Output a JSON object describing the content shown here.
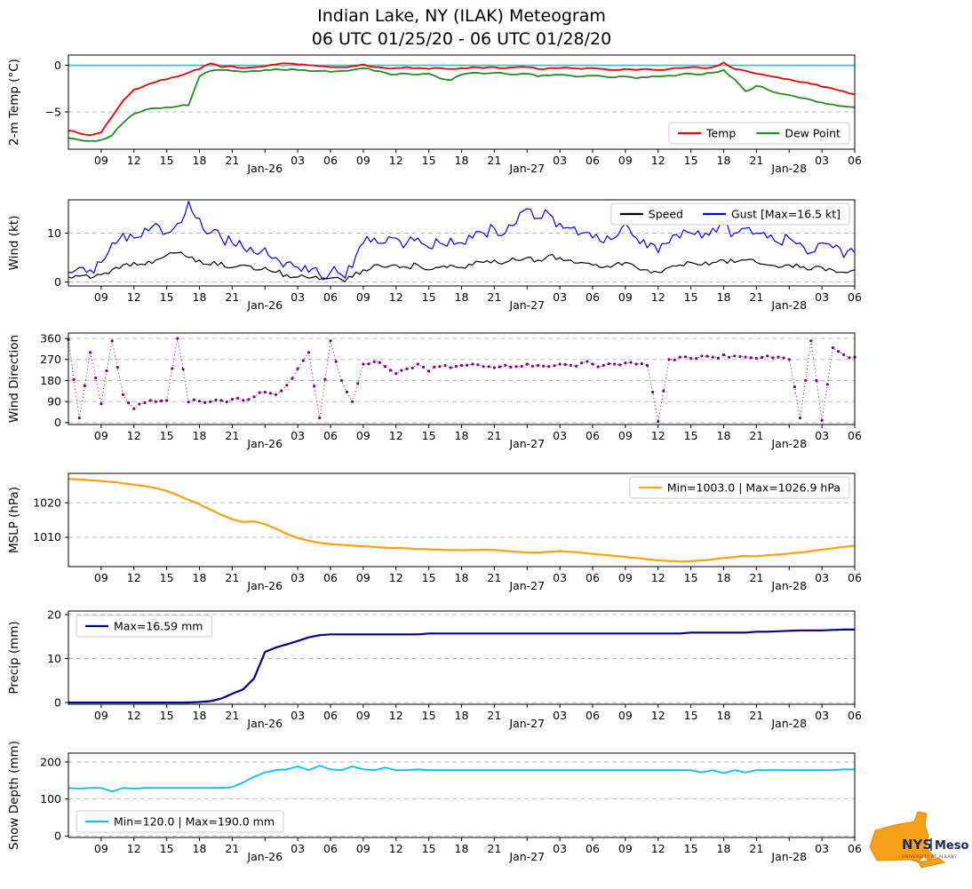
{
  "title": {
    "line1": "Indian Lake, NY (ILAK) Meteogram",
    "line2": "06 UTC 01/25/20 - 06 UTC 01/28/20"
  },
  "logo": {
    "nys": "NYS",
    "mesonet": "Mesonet",
    "sub": "UNIVERSITY AT ALBANY"
  },
  "x_axis": {
    "hours_span": 72,
    "tick_interval_hours": 3,
    "labels": [
      "09",
      "12",
      "15",
      "18",
      "21",
      "Jan-26",
      "03",
      "06",
      "09",
      "12",
      "15",
      "18",
      "21",
      "Jan-27",
      "03",
      "06",
      "09",
      "12",
      "15",
      "18",
      "21",
      "Jan-28",
      "03",
      "06"
    ],
    "date_label_indices": [
      5,
      13,
      21
    ]
  },
  "chart_data": [
    {
      "id": "temp",
      "type": "line",
      "ylabel": "2-m Temp (°C)",
      "ylim": [
        -9,
        1.1
      ],
      "yticks": [
        0,
        -5
      ],
      "zero_line": {
        "value": 0,
        "color": "#00d0e0"
      },
      "series": [
        {
          "name": "Temp",
          "color": "#ee0000",
          "width": 1.8,
          "upsample": 2,
          "jitter": 0.08,
          "y": [
            -7.0,
            -7.3,
            -7.5,
            -7.2,
            -5.5,
            -3.8,
            -2.6,
            -2.2,
            -1.8,
            -1.5,
            -1.2,
            -0.8,
            -0.4,
            0.2,
            -0.2,
            -0.1,
            -0.3,
            -0.2,
            -0.1,
            0.1,
            0.2,
            0.1,
            0.0,
            -0.1,
            -0.2,
            -0.2,
            -0.1,
            0.1,
            -0.2,
            -0.3,
            -0.3,
            -0.2,
            -0.3,
            -0.4,
            -0.3,
            -0.4,
            -0.3,
            -0.2,
            -0.3,
            -0.2,
            -0.3,
            -0.2,
            -0.2,
            -0.4,
            -0.3,
            -0.3,
            -0.3,
            -0.4,
            -0.3,
            -0.4,
            -0.5,
            -0.4,
            -0.5,
            -0.4,
            -0.5,
            -0.4,
            -0.3,
            -0.2,
            -0.3,
            -0.2,
            0.3,
            -0.4,
            -0.6,
            -0.9,
            -1.1,
            -1.3,
            -1.5,
            -1.8,
            -2.0,
            -2.3,
            -2.5,
            -2.8,
            -3.1
          ]
        },
        {
          "name": "Dew Point",
          "color": "#228b22",
          "width": 1.8,
          "upsample": 2,
          "jitter": 0.1,
          "y": [
            -7.8,
            -8.0,
            -8.1,
            -8.0,
            -7.5,
            -6.2,
            -5.2,
            -4.8,
            -4.6,
            -4.5,
            -4.4,
            -4.3,
            -1.2,
            -0.6,
            -0.5,
            -0.6,
            -0.7,
            -0.6,
            -0.5,
            -0.4,
            -0.5,
            -0.5,
            -0.6,
            -0.6,
            -0.7,
            -0.6,
            -0.5,
            -0.3,
            -0.6,
            -0.8,
            -1.0,
            -0.9,
            -1.0,
            -0.9,
            -1.4,
            -1.6,
            -1.0,
            -0.8,
            -0.9,
            -0.8,
            -0.9,
            -1.0,
            -0.9,
            -1.2,
            -1.1,
            -1.0,
            -1.1,
            -1.2,
            -1.1,
            -1.2,
            -1.3,
            -1.2,
            -1.4,
            -1.3,
            -1.2,
            -1.1,
            -1.0,
            -0.9,
            -1.0,
            -0.8,
            -0.5,
            -1.5,
            -2.8,
            -2.2,
            -2.6,
            -3.0,
            -3.2,
            -3.5,
            -3.7,
            -4.0,
            -4.2,
            -4.4,
            -4.5
          ]
        }
      ],
      "legend": {
        "position": "bottom-right",
        "items": [
          {
            "label": "Temp",
            "color": "#ee0000"
          },
          {
            "label": "Dew Point",
            "color": "#228b22"
          }
        ]
      }
    },
    {
      "id": "wind",
      "type": "line",
      "ylabel": "Wind (kt)",
      "ylim": [
        -0.8,
        16.8
      ],
      "yticks": [
        0,
        10
      ],
      "series": [
        {
          "name": "Speed",
          "color": "#000000",
          "width": 1.2,
          "upsample": 3,
          "jitter": 0.6,
          "clamp": [
            0,
            16.5
          ],
          "y": [
            1.0,
            1.2,
            0.8,
            1.5,
            2.5,
            3.5,
            4.0,
            3.5,
            4.5,
            5.5,
            6.0,
            5.0,
            4.5,
            3.5,
            4.0,
            3.0,
            3.5,
            2.5,
            3.0,
            2.0,
            1.5,
            1.0,
            0.8,
            0.5,
            0.8,
            0.5,
            1.0,
            2.5,
            3.5,
            3.0,
            3.5,
            3.0,
            3.5,
            2.5,
            3.0,
            3.5,
            3.0,
            3.5,
            4.0,
            4.5,
            4.0,
            4.5,
            5.0,
            4.5,
            5.5,
            5.0,
            4.5,
            4.0,
            3.5,
            3.0,
            3.5,
            4.0,
            3.0,
            2.5,
            2.0,
            3.0,
            3.5,
            4.0,
            3.5,
            4.0,
            4.5,
            4.0,
            4.5,
            4.0,
            3.5,
            3.0,
            3.5,
            3.0,
            2.5,
            3.0,
            2.5,
            2.0,
            2.5
          ]
        },
        {
          "name": "Gust",
          "color": "#0000ee",
          "width": 1.2,
          "upsample": 3,
          "jitter": 1.4,
          "clamp": [
            0,
            16.5
          ],
          "y": [
            2.0,
            3.0,
            2.5,
            4.0,
            8.0,
            10.0,
            9.0,
            11.0,
            12.0,
            10.0,
            12.0,
            16.5,
            13.0,
            10.0,
            9.0,
            8.0,
            7.0,
            6.0,
            7.0,
            5.0,
            4.0,
            3.0,
            2.0,
            1.5,
            2.0,
            1.5,
            3.0,
            8.0,
            9.0,
            8.0,
            9.0,
            8.0,
            9.0,
            7.0,
            8.0,
            9.0,
            8.0,
            9.0,
            10.0,
            11.0,
            10.0,
            12.0,
            15.0,
            13.0,
            14.0,
            12.0,
            11.0,
            10.0,
            9.0,
            8.0,
            9.0,
            12.0,
            9.0,
            7.0,
            6.0,
            8.0,
            9.0,
            10.0,
            9.0,
            11.0,
            12.0,
            10.0,
            11.0,
            10.0,
            9.0,
            8.0,
            9.0,
            8.0,
            6.0,
            8.0,
            7.0,
            5.0,
            6.0
          ]
        }
      ],
      "legend": {
        "position": "top-right",
        "items": [
          {
            "label": "Speed",
            "color": "#000000"
          },
          {
            "label": "Gust [Max=16.5 kt]",
            "color": "#0000ee"
          }
        ]
      }
    },
    {
      "id": "wdir",
      "type": "scatter",
      "ylabel": "Wind Direction",
      "ylim": [
        -8,
        383
      ],
      "yticks": [
        0,
        90,
        180,
        270,
        360
      ],
      "series": [
        {
          "name": "Wind Direction",
          "color": "#800080",
          "style": "scatter-dotted",
          "upsample": 2,
          "jitter": 9,
          "clamp": [
            0,
            360
          ],
          "y": [
            355,
            20,
            300,
            80,
            350,
            120,
            60,
            85,
            90,
            95,
            360,
            88,
            92,
            90,
            95,
            100,
            95,
            110,
            130,
            120,
            160,
            230,
            300,
            20,
            350,
            180,
            90,
            250,
            260,
            240,
            210,
            230,
            250,
            220,
            240,
            235,
            245,
            250,
            240,
            235,
            245,
            240,
            250,
            245,
            240,
            250,
            245,
            255,
            250,
            245,
            250,
            255,
            250,
            245,
            5,
            270,
            280,
            275,
            285,
            280,
            290,
            285,
            280,
            275,
            285,
            280,
            270,
            20,
            350,
            10,
            320,
            290,
            280
          ]
        }
      ]
    },
    {
      "id": "mslp",
      "type": "line",
      "ylabel": "MSLP (hPa)",
      "ylim": [
        1001.5,
        1028.5
      ],
      "yticks": [
        1010,
        1020
      ],
      "series": [
        {
          "name": "MSLP",
          "color": "#ffa010",
          "width": 2.2,
          "upsample": 2,
          "jitter": 0.06,
          "y": [
            1026.9,
            1026.7,
            1026.5,
            1026.3,
            1026.0,
            1025.6,
            1025.2,
            1024.8,
            1024.2,
            1023.4,
            1022.2,
            1020.8,
            1019.5,
            1018.0,
            1016.5,
            1015.2,
            1014.4,
            1014.6,
            1013.8,
            1012.5,
            1011.0,
            1009.8,
            1009.0,
            1008.4,
            1008.0,
            1007.8,
            1007.6,
            1007.4,
            1007.2,
            1007.0,
            1006.9,
            1006.8,
            1006.6,
            1006.5,
            1006.4,
            1006.3,
            1006.2,
            1006.3,
            1006.4,
            1006.3,
            1006.0,
            1005.8,
            1005.6,
            1005.5,
            1005.8,
            1006.0,
            1005.8,
            1005.5,
            1005.2,
            1004.9,
            1004.6,
            1004.3,
            1004.0,
            1003.6,
            1003.3,
            1003.1,
            1003.0,
            1003.1,
            1003.3,
            1003.6,
            1004.0,
            1004.3,
            1004.6,
            1004.5,
            1004.8,
            1005.0,
            1005.3,
            1005.6,
            1006.0,
            1006.4,
            1006.8,
            1007.2,
            1007.6
          ]
        }
      ],
      "legend": {
        "position": "top-right",
        "items": [
          {
            "label": "Min=1003.0 | Max=1026.9 hPa",
            "color": "#ffa010"
          }
        ]
      }
    },
    {
      "id": "precip",
      "type": "line",
      "ylabel": "Precip (mm)",
      "ylim": [
        -0.4,
        20.8
      ],
      "yticks": [
        0,
        10,
        20
      ],
      "series": [
        {
          "name": "Precip",
          "color": "#00008b",
          "width": 2.2,
          "y": [
            0,
            0,
            0,
            0,
            0,
            0,
            0,
            0,
            0,
            0,
            0,
            0,
            0.1,
            0.3,
            0.9,
            2.0,
            3.0,
            5.5,
            11.5,
            12.5,
            13.2,
            14.0,
            14.8,
            15.3,
            15.5,
            15.5,
            15.5,
            15.5,
            15.5,
            15.5,
            15.5,
            15.5,
            15.5,
            15.7,
            15.7,
            15.7,
            15.7,
            15.7,
            15.7,
            15.7,
            15.7,
            15.7,
            15.7,
            15.7,
            15.7,
            15.7,
            15.7,
            15.7,
            15.7,
            15.7,
            15.7,
            15.7,
            15.7,
            15.7,
            15.7,
            15.7,
            15.7,
            15.9,
            15.9,
            15.9,
            15.9,
            15.9,
            15.9,
            16.1,
            16.1,
            16.2,
            16.3,
            16.4,
            16.4,
            16.4,
            16.5,
            16.59,
            16.59
          ]
        }
      ],
      "legend": {
        "position": "top-left",
        "items": [
          {
            "label": "Max=16.59 mm",
            "color": "#00008b"
          }
        ]
      }
    },
    {
      "id": "snow",
      "type": "line",
      "ylabel": "Snow Depth (mm)",
      "ylim": [
        -4,
        224
      ],
      "yticks": [
        0,
        100,
        200
      ],
      "series": [
        {
          "name": "Snow Depth",
          "color": "#00bfff",
          "width": 1.8,
          "y": [
            130,
            128,
            130,
            130,
            120,
            130,
            128,
            130,
            130,
            130,
            130,
            130,
            130,
            130,
            130,
            132,
            145,
            160,
            172,
            178,
            180,
            188,
            178,
            190,
            180,
            178,
            188,
            180,
            178,
            185,
            178,
            178,
            180,
            178,
            178,
            178,
            178,
            178,
            178,
            178,
            178,
            178,
            178,
            178,
            178,
            178,
            178,
            178,
            178,
            178,
            178,
            178,
            178,
            178,
            178,
            178,
            178,
            178,
            172,
            178,
            170,
            178,
            172,
            178,
            178,
            178,
            178,
            178,
            178,
            178,
            178,
            180,
            180
          ]
        }
      ],
      "legend": {
        "position": "bottom-left",
        "items": [
          {
            "label": "Min=120.0 | Max=190.0 mm",
            "color": "#00bfff"
          }
        ]
      }
    }
  ]
}
